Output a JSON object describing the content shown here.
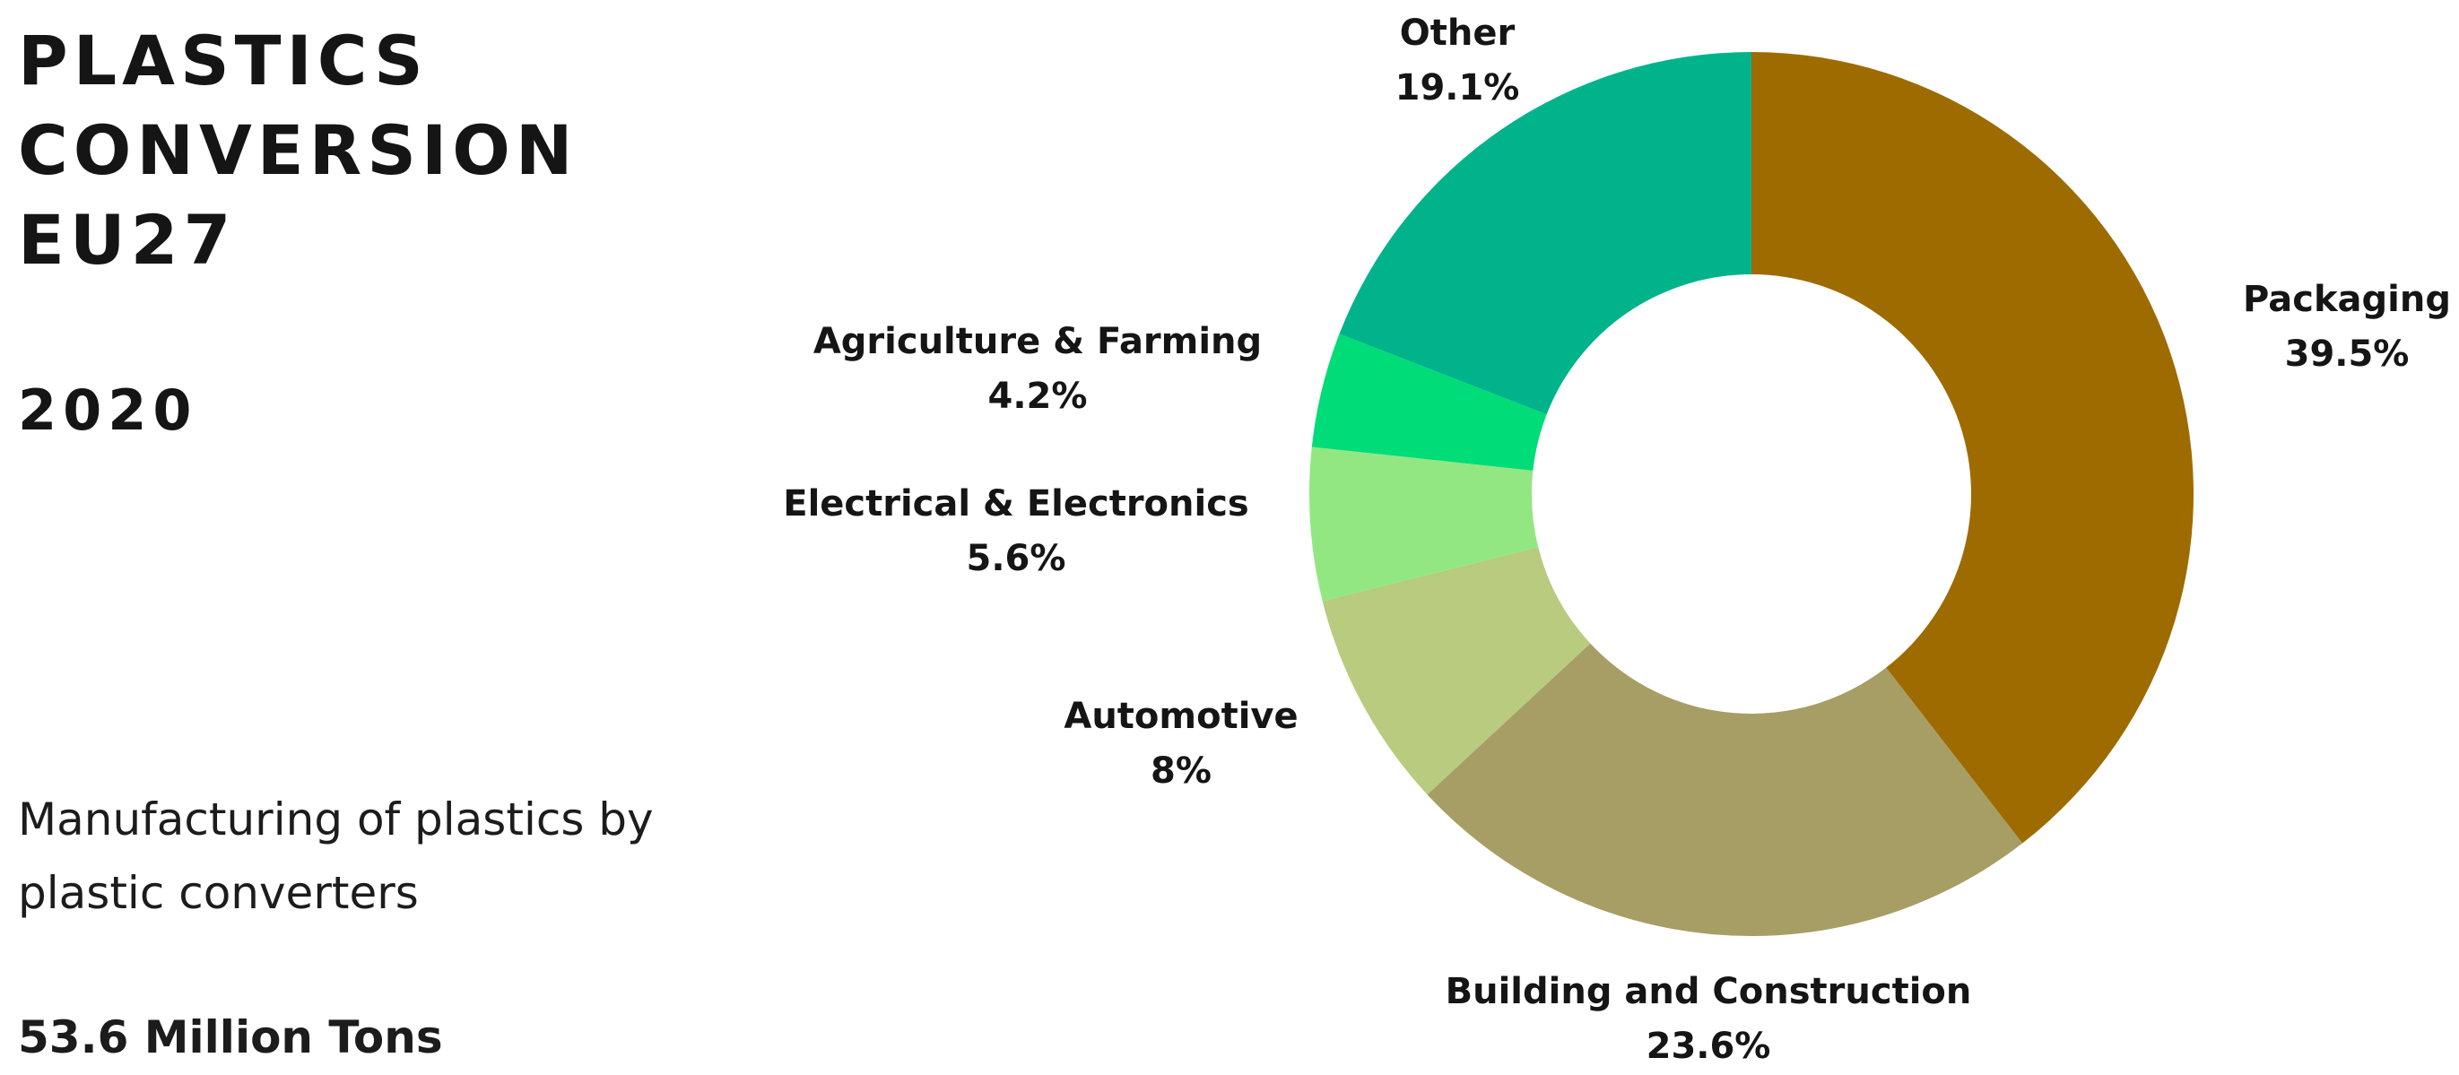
{
  "header": {
    "title_lines": [
      "PLASTICS",
      "CONVERSION",
      "EU27"
    ],
    "year": "2020"
  },
  "description": {
    "lines": [
      "Manufacturing of plastics by",
      "plastic converters"
    ]
  },
  "total": {
    "text": "53.6 Million Tons"
  },
  "chart_data": {
    "type": "pie",
    "donut": true,
    "title": "PLASTICS CONVERSION EU27",
    "slices": [
      {
        "label": "Packaging",
        "value": 39.5,
        "value_label": "39.5%",
        "color": "#9e6b00"
      },
      {
        "label": "Building and Construction",
        "value": 23.6,
        "value_label": "23.6%",
        "color": "#a79e66"
      },
      {
        "label": "Automotive",
        "value": 8,
        "value_label": "8%",
        "color": "#b8cb7f"
      },
      {
        "label": "Electrical & Electronics",
        "value": 5.6,
        "value_label": "5.6%",
        "color": "#92e783"
      },
      {
        "label": "Agriculture & Farming",
        "value": 4.2,
        "value_label": "4.2%",
        "color": "#00dc78"
      },
      {
        "label": "Other",
        "value": 19.1,
        "value_label": "19.1%",
        "color": "#00b38b"
      }
    ],
    "legend": "none"
  }
}
